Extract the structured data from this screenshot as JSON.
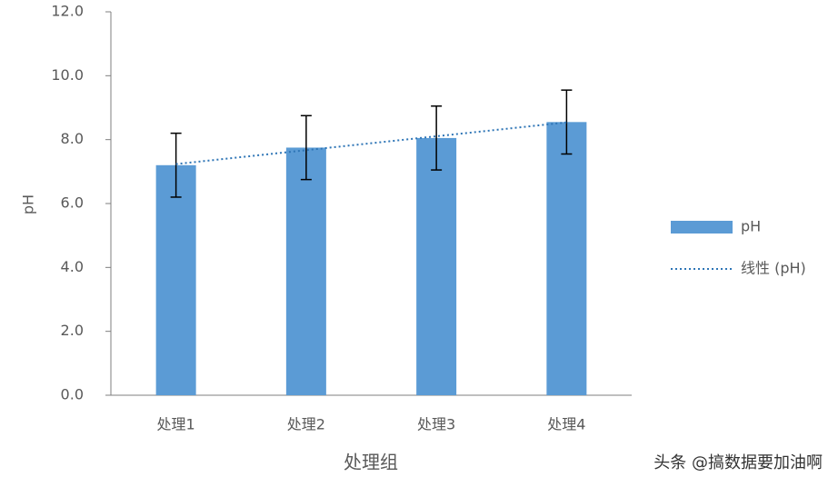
{
  "chart_data": {
    "type": "bar",
    "categories": [
      "处理1",
      "处理2",
      "处理3",
      "处理4"
    ],
    "series": [
      {
        "name": "pH",
        "color": "#5b9bd5",
        "values": [
          7.2,
          7.75,
          8.05,
          8.55
        ],
        "errors": [
          1.0,
          1.0,
          1.0,
          1.0
        ]
      }
    ],
    "trendline": {
      "name": "线性 (pH)",
      "color": "#2e75b6",
      "kind": "linear"
    },
    "ylabel": "pH",
    "xlabel": "处理组",
    "ylim": [
      0,
      12
    ],
    "yticks": [
      {
        "value": 0,
        "label": "0.0"
      },
      {
        "value": 2,
        "label": "2.0"
      },
      {
        "value": 4,
        "label": "4.0"
      },
      {
        "value": 6,
        "label": "6.0"
      },
      {
        "value": 8,
        "label": "8.0"
      },
      {
        "value": 10,
        "label": "10.0"
      },
      {
        "value": 12,
        "label": "12.0"
      }
    ],
    "legend": "right",
    "watermark": "头条 @搞数据要加油啊"
  }
}
